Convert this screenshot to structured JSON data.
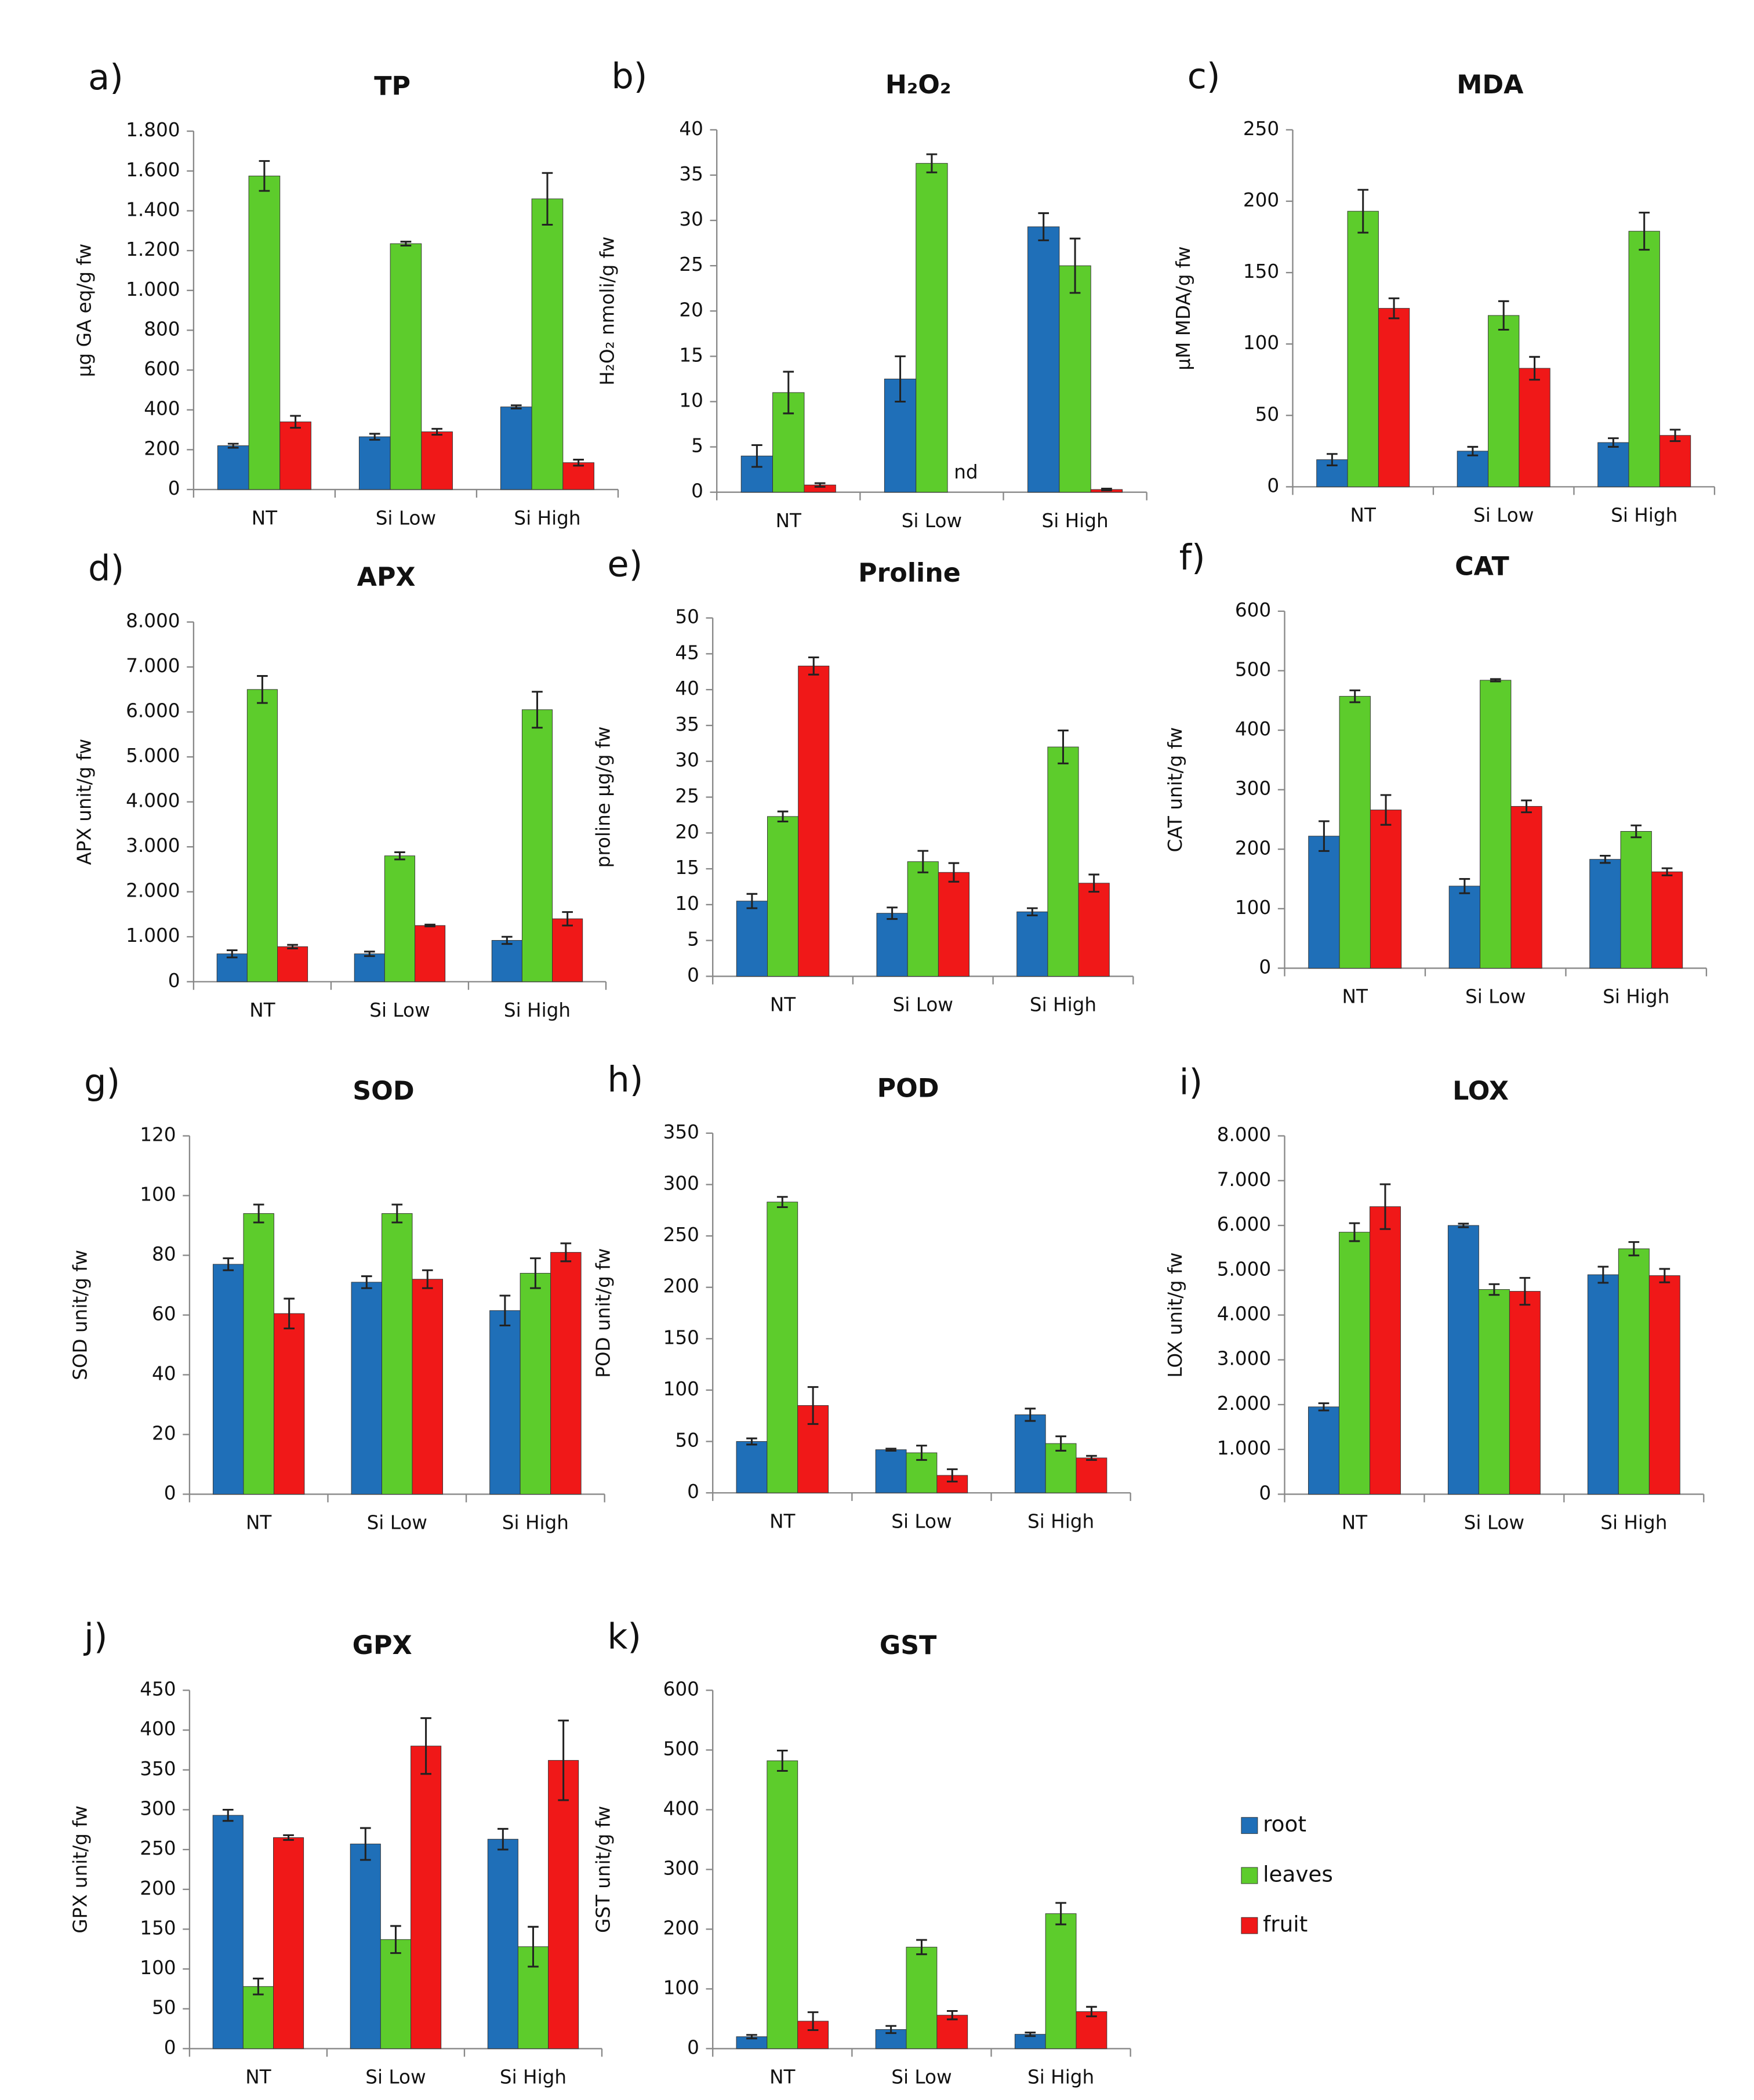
{
  "legend": [
    {
      "name": "root",
      "color": "#1f6fb8"
    },
    {
      "name": "leaves",
      "color": "#5dcc2c"
    },
    {
      "name": "fruit",
      "color": "#f01818"
    }
  ],
  "chart_data": [
    {
      "type": "bar",
      "panel": "a)",
      "title": "TP",
      "ylabel": "µg GA eq/g fw",
      "categories": [
        "NT",
        "Si Low",
        "Si High"
      ],
      "series": [
        {
          "values": [
            220,
            265,
            415
          ],
          "errors": [
            10,
            15,
            8
          ]
        },
        {
          "values": [
            1575,
            1235,
            1460
          ],
          "errors": [
            75,
            10,
            130
          ]
        },
        {
          "values": [
            340,
            290,
            135
          ],
          "errors": [
            30,
            15,
            15
          ]
        }
      ],
      "ylim": [
        0,
        1800
      ],
      "yticks": [
        0,
        200,
        400,
        600,
        800,
        {
          "value": 1000,
          "label": "1.000"
        },
        {
          "value": 1200,
          "label": "1.200"
        },
        {
          "value": 1400,
          "label": "1.400"
        },
        {
          "value": 1600,
          "label": "1.600"
        },
        {
          "value": 1800,
          "label": "1.800"
        }
      ]
    },
    {
      "type": "bar",
      "panel": "b)",
      "title": "H₂O₂",
      "ylabel": "H₂O₂ nmoli/g fw",
      "categories": [
        "NT",
        "Si Low",
        "Si High"
      ],
      "series": [
        {
          "values": [
            4,
            12.5,
            29.3
          ],
          "errors": [
            1.2,
            2.5,
            1.5
          ]
        },
        {
          "values": [
            11,
            36.3,
            25
          ],
          "errors": [
            2.3,
            1,
            3
          ]
        },
        {
          "values": [
            0.8,
            null,
            0.3
          ],
          "errors": [
            0.2,
            null,
            0.1
          ]
        }
      ],
      "annotations": [
        "nd"
      ],
      "ylim": [
        0,
        40
      ],
      "yticks": [
        0,
        5,
        10,
        15,
        20,
        25,
        30,
        35,
        40
      ]
    },
    {
      "type": "bar",
      "panel": "c)",
      "title": "MDA",
      "ylabel": "µM MDA/g fw",
      "categories": [
        "NT",
        "Si Low",
        "Si High"
      ],
      "series": [
        {
          "values": [
            19,
            25,
            31
          ],
          "errors": [
            4,
            3,
            3
          ]
        },
        {
          "values": [
            193,
            120,
            179
          ],
          "errors": [
            15,
            10,
            13
          ]
        },
        {
          "values": [
            125,
            83,
            36
          ],
          "errors": [
            7,
            8,
            4
          ]
        }
      ],
      "ylim": [
        0,
        250
      ],
      "yticks": [
        0,
        50,
        100,
        150,
        200,
        250
      ]
    },
    {
      "type": "bar",
      "panel": "d)",
      "title": "APX",
      "ylabel": "APX unit/g fw",
      "categories": [
        "NT",
        "Si Low",
        "Si High"
      ],
      "series": [
        {
          "values": [
            620,
            620,
            920
          ],
          "errors": [
            80,
            50,
            80
          ]
        },
        {
          "values": [
            6500,
            2800,
            6050
          ],
          "errors": [
            300,
            80,
            400
          ]
        },
        {
          "values": [
            780,
            1250,
            1400
          ],
          "errors": [
            40,
            20,
            150
          ]
        }
      ],
      "ylim": [
        0,
        8000
      ],
      "yticks": [
        0,
        {
          "value": 1000,
          "label": "1.000"
        },
        {
          "value": 2000,
          "label": "2.000"
        },
        {
          "value": 3000,
          "label": "3.000"
        },
        {
          "value": 4000,
          "label": "4.000"
        },
        {
          "value": 5000,
          "label": "5.000"
        },
        {
          "value": 6000,
          "label": "6.000"
        },
        {
          "value": 7000,
          "label": "7.000"
        },
        {
          "value": 8000,
          "label": "8.000"
        }
      ]
    },
    {
      "type": "bar",
      "panel": "e)",
      "title": "Proline",
      "ylabel": "proline µg/g fw",
      "categories": [
        "NT",
        "Si Low",
        "Si High"
      ],
      "series": [
        {
          "values": [
            10.5,
            8.8,
            9
          ],
          "errors": [
            1,
            0.8,
            0.5
          ]
        },
        {
          "values": [
            22.3,
            16,
            32
          ],
          "errors": [
            0.7,
            1.5,
            2.3
          ]
        },
        {
          "values": [
            43.3,
            14.5,
            13
          ],
          "errors": [
            1.2,
            1.3,
            1.2
          ]
        }
      ],
      "ylim": [
        0,
        50
      ],
      "yticks": [
        0,
        5,
        10,
        15,
        20,
        25,
        30,
        35,
        40,
        45,
        50
      ]
    },
    {
      "type": "bar",
      "panel": "f)",
      "title": "CAT",
      "ylabel": "CAT unit/g fw",
      "categories": [
        "NT",
        "Si Low",
        "Si High"
      ],
      "series": [
        {
          "values": [
            222,
            138,
            183
          ],
          "errors": [
            25,
            12,
            6
          ]
        },
        {
          "values": [
            457,
            484,
            230
          ],
          "errors": [
            10,
            2,
            10
          ]
        },
        {
          "values": [
            266,
            272,
            162
          ],
          "errors": [
            25,
            10,
            6
          ]
        }
      ],
      "ylim": [
        0,
        600
      ],
      "yticks": [
        0,
        100,
        200,
        300,
        400,
        500,
        600
      ]
    },
    {
      "type": "bar",
      "panel": "g)",
      "title": "SOD",
      "ylabel": "SOD unit/g fw",
      "categories": [
        "NT",
        "Si Low",
        "Si High"
      ],
      "series": [
        {
          "values": [
            77,
            71,
            61.5
          ],
          "errors": [
            2,
            2,
            5
          ]
        },
        {
          "values": [
            94,
            94,
            74
          ],
          "errors": [
            3,
            3,
            5
          ]
        },
        {
          "values": [
            60.5,
            72,
            81
          ],
          "errors": [
            5,
            3,
            3
          ]
        }
      ],
      "ylim": [
        0,
        120
      ],
      "yticks": [
        0,
        20,
        40,
        60,
        80,
        100,
        120
      ]
    },
    {
      "type": "bar",
      "panel": "h)",
      "title": "POD",
      "ylabel": "POD unit/g fw",
      "categories": [
        "NT",
        "Si Low",
        "Si High"
      ],
      "series": [
        {
          "values": [
            50,
            42,
            76
          ],
          "errors": [
            3,
            1,
            6
          ]
        },
        {
          "values": [
            283,
            39,
            48
          ],
          "errors": [
            5,
            7,
            7
          ]
        },
        {
          "values": [
            85,
            17,
            34
          ],
          "errors": [
            18,
            6,
            2
          ]
        }
      ],
      "ylim": [
        0,
        350
      ],
      "yticks": [
        0,
        50,
        100,
        150,
        200,
        250,
        300,
        350
      ]
    },
    {
      "type": "bar",
      "panel": "i)",
      "title": "LOX",
      "ylabel": "LOX unit/g fw",
      "categories": [
        "NT",
        "Si Low",
        "Si High"
      ],
      "series": [
        {
          "values": [
            1950,
            6000,
            4900
          ],
          "errors": [
            80,
            40,
            180
          ]
        },
        {
          "values": [
            5850,
            4570,
            5480
          ],
          "errors": [
            200,
            120,
            150
          ]
        },
        {
          "values": [
            6420,
            4530,
            4880
          ],
          "errors": [
            500,
            300,
            150
          ]
        }
      ],
      "ylim": [
        0,
        8000
      ],
      "yticks": [
        0,
        {
          "value": 1000,
          "label": "1.000"
        },
        {
          "value": 2000,
          "label": "2.000"
        },
        {
          "value": 3000,
          "label": "3.000"
        },
        {
          "value": 4000,
          "label": "4.000"
        },
        {
          "value": 5000,
          "label": "5.000"
        },
        {
          "value": 6000,
          "label": "6.000"
        },
        {
          "value": 7000,
          "label": "7.000"
        },
        {
          "value": 8000,
          "label": "8.000"
        }
      ]
    },
    {
      "type": "bar",
      "panel": "j)",
      "title": "GPX",
      "ylabel": "GPX unit/g fw",
      "categories": [
        "NT",
        "Si Low",
        "Si High"
      ],
      "series": [
        {
          "values": [
            293,
            257,
            263
          ],
          "errors": [
            7,
            20,
            13
          ]
        },
        {
          "values": [
            78,
            137,
            128
          ],
          "errors": [
            10,
            17,
            25
          ]
        },
        {
          "values": [
            265,
            380,
            362
          ],
          "errors": [
            3,
            35,
            50
          ]
        }
      ],
      "ylim": [
        0,
        450
      ],
      "yticks": [
        0,
        50,
        100,
        150,
        200,
        250,
        300,
        350,
        400,
        450
      ]
    },
    {
      "type": "bar",
      "panel": "k)",
      "title": "GST",
      "ylabel": "GST unit/g fw",
      "categories": [
        "NT",
        "Si Low",
        "Si High"
      ],
      "series": [
        {
          "values": [
            20,
            32,
            24
          ],
          "errors": [
            3,
            6,
            3
          ]
        },
        {
          "values": [
            482,
            170,
            226
          ],
          "errors": [
            17,
            12,
            18
          ]
        },
        {
          "values": [
            46,
            56,
            62
          ],
          "errors": [
            15,
            7,
            8
          ]
        }
      ],
      "ylim": [
        0,
        600
      ],
      "yticks": [
        0,
        100,
        200,
        300,
        400,
        500,
        600
      ]
    }
  ]
}
